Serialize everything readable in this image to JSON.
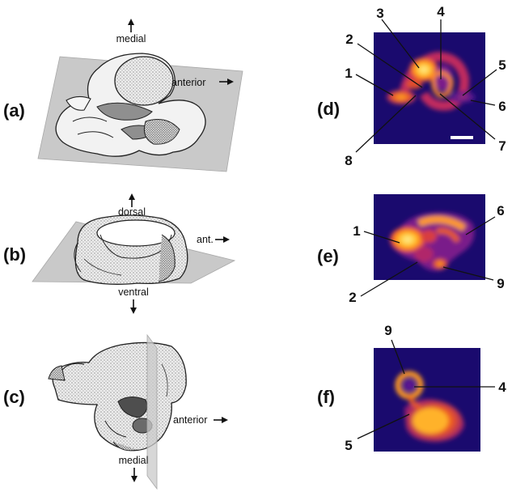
{
  "panels": {
    "a": {
      "label": "(a)",
      "dir_up": "medial",
      "dir_right": "anterior"
    },
    "b": {
      "label": "(b)",
      "dir_up": "dorsal",
      "dir_right": "ant.",
      "dir_down": "ventral"
    },
    "c": {
      "label": "(c)",
      "dir_right": "anterior",
      "dir_down": "medial"
    },
    "d": {
      "label": "(d)",
      "numbers": [
        "1",
        "2",
        "3",
        "4",
        "5",
        "6",
        "7",
        "8"
      ]
    },
    "e": {
      "label": "(e)",
      "numbers": [
        "1",
        "2",
        "6",
        "9"
      ]
    },
    "f": {
      "label": "(f)",
      "numbers": [
        "9",
        "4",
        "5"
      ]
    }
  },
  "colors": {
    "scan_background": "#1a0a6e",
    "scan_hot": "#ffd23a",
    "scan_warm": "#ff7a1a",
    "scan_mid": "#c0285a",
    "plane": "#c9c9c9",
    "scale_bar": "#ffffff"
  },
  "icons": {
    "direction_arrow": "arrow-icon"
  }
}
